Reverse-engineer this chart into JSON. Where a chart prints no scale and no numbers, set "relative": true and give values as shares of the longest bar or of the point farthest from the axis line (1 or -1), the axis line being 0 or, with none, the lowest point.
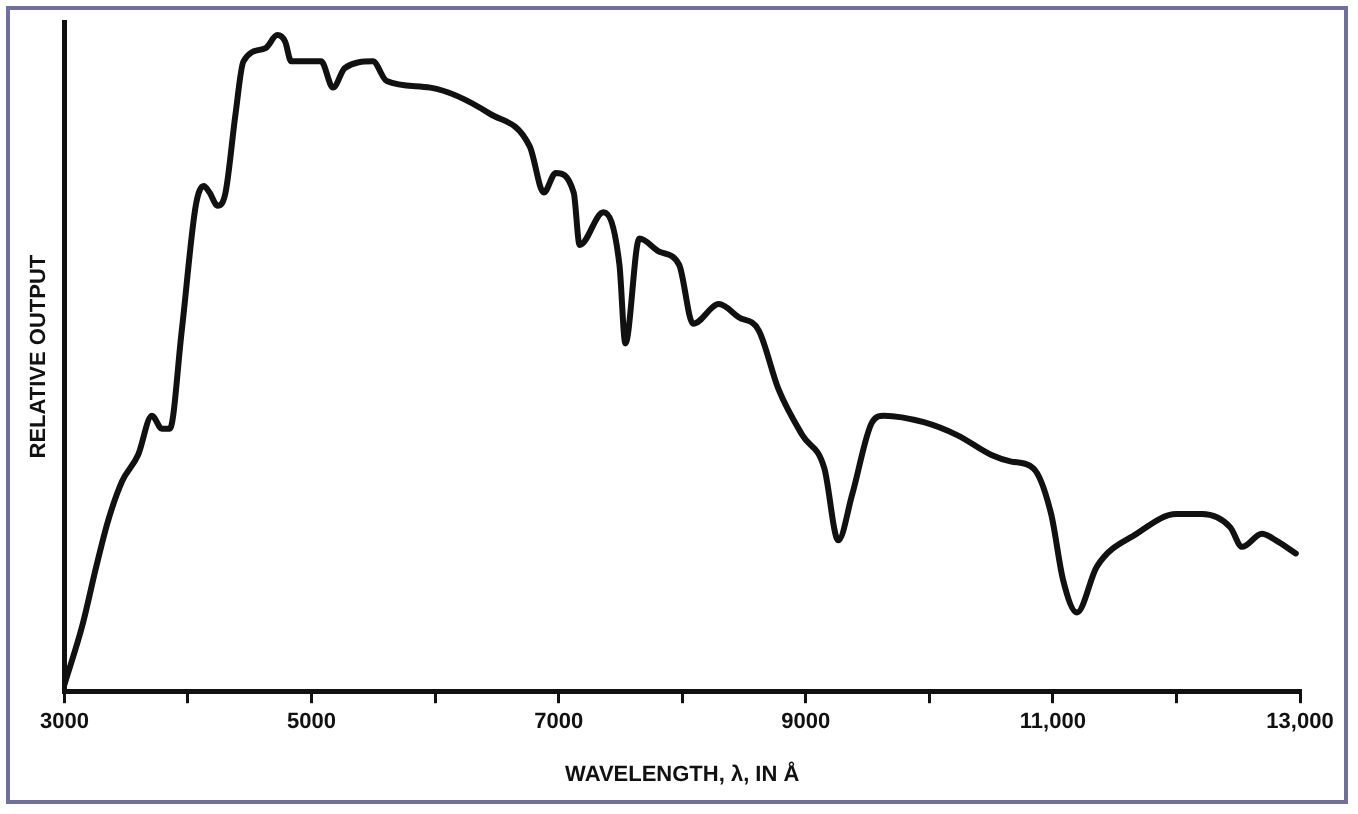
{
  "chart_data": {
    "type": "line",
    "relative": true,
    "xlabel": "WAVELENGTH, λ, IN Å",
    "ylabel": "RELATIVE OUTPUT",
    "xlim": [
      3000,
      13000
    ],
    "xticks": [
      3000,
      {
        "value": 4000,
        "label": null
      },
      5000,
      {
        "value": 6000,
        "label": null
      },
      7000,
      {
        "value": 8000,
        "label": null
      },
      9000,
      {
        "value": 10000,
        "label": null
      },
      {
        "value": 11000,
        "label": "11,000"
      },
      {
        "value": 12000,
        "label": null
      },
      {
        "value": 13000,
        "label": "13,000"
      }
    ],
    "grid": false,
    "legend": false,
    "series": [
      {
        "color": "#111111",
        "x": [
          3000,
          3145,
          3258,
          3354,
          3467,
          3596,
          3708,
          3789,
          3853,
          3950,
          4063,
          4127,
          4175,
          4240,
          4304,
          4385,
          4449,
          4626,
          4723,
          4787,
          4835,
          5077,
          5174,
          5270,
          5496,
          5608,
          5962,
          6445,
          6767,
          6880,
          6977,
          7122,
          7170,
          7363,
          7492,
          7540,
          7653,
          7814,
          7975,
          8088,
          8297,
          8458,
          8619,
          8780,
          8973,
          9150,
          9263,
          9376,
          9537,
          9633,
          9955,
          10229,
          10503,
          10664,
          10841,
          10986,
          11082,
          11195,
          11356,
          11678,
          12000,
          12209,
          12435,
          12531,
          12692,
          12805,
          12966
        ],
        "values": [
          0.01,
          0.1,
          0.19,
          0.26,
          0.32,
          0.36,
          0.42,
          0.4,
          0.4,
          0.55,
          0.74,
          0.77,
          0.76,
          0.74,
          0.76,
          0.88,
          0.96,
          0.98,
          1.0,
          0.99,
          0.96,
          0.96,
          0.92,
          0.95,
          0.96,
          0.93,
          0.92,
          0.88,
          0.83,
          0.76,
          0.79,
          0.76,
          0.68,
          0.73,
          0.65,
          0.53,
          0.69,
          0.67,
          0.65,
          0.56,
          0.59,
          0.57,
          0.55,
          0.46,
          0.39,
          0.34,
          0.23,
          0.3,
          0.41,
          0.42,
          0.41,
          0.39,
          0.36,
          0.35,
          0.34,
          0.27,
          0.17,
          0.12,
          0.19,
          0.24,
          0.27,
          0.27,
          0.25,
          0.22,
          0.24,
          0.23,
          0.21
        ]
      }
    ]
  }
}
